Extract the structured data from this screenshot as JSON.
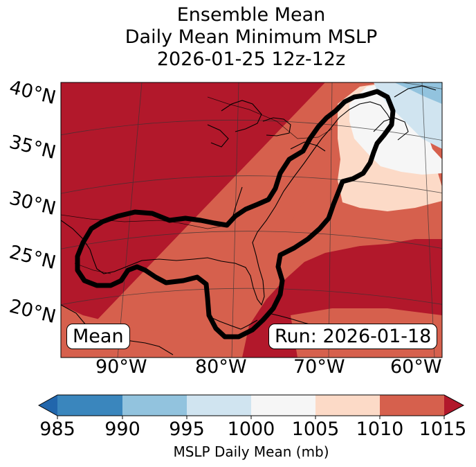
{
  "title": {
    "line1": "Ensemble Mean",
    "line2": "Daily Mean Minimum MSLP",
    "line3": "2026-01-25 12z-12z"
  },
  "map": {
    "lat_labels": [
      "40°N",
      "35°N",
      "30°N",
      "25°N",
      "20°N"
    ],
    "lon_labels": [
      "90°W",
      "80°W",
      "70°W",
      "60°W"
    ],
    "mean_label": "Mean",
    "run_label": "Run: 2026-01-18",
    "colors": {
      "c985": "#3a86bd",
      "c990": "#92c3de",
      "c995": "#d0e4f0",
      "c1000": "#f6f6f6",
      "c1005": "#fcdac7",
      "c1010": "#d6604d",
      "c1015": "#b2182b",
      "under": "#2166ac"
    }
  },
  "colorbar": {
    "ticks": [
      "985",
      "990",
      "995",
      "1000",
      "1005",
      "1010",
      "1015"
    ],
    "label": "MSLP Daily Mean (mb)"
  }
}
